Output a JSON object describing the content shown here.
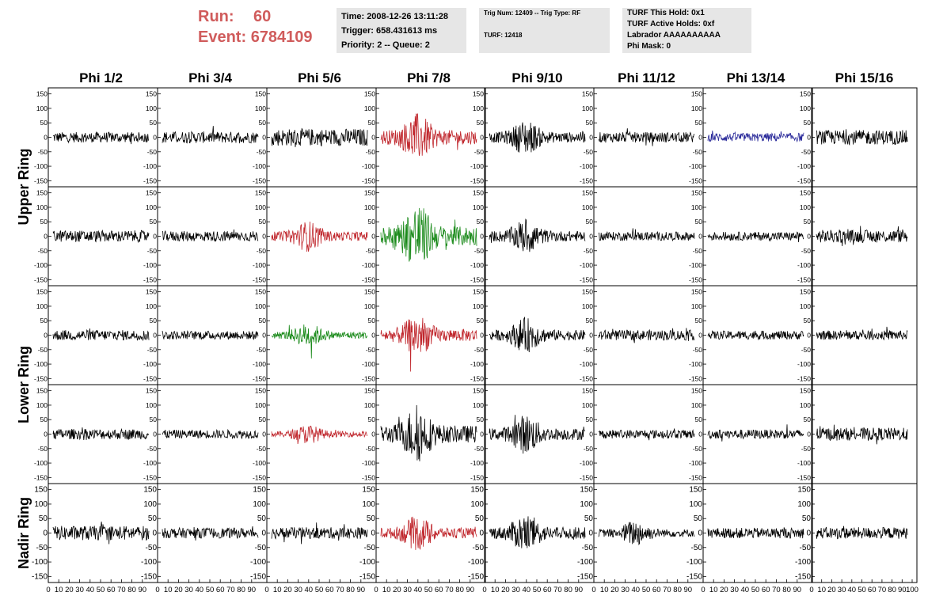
{
  "header": {
    "run_label": "Run:",
    "run_value": "60",
    "event_label": "Event:",
    "event_value": "6784109",
    "time_line": "Time: 2008-12-26 13:11:28",
    "trigger_line": "Trigger: 658.431613 ms",
    "priority_line": "Priority: 2 -- Queue: 2",
    "trig_num_line": "Trig Num: 12409 -- Trig Type: RF",
    "turf_line": "TURF: 12418",
    "turf_hold_line": "TURF This Hold: 0x1",
    "turf_active_line": "TURF Active Holds: 0xf",
    "labrador_line": "Labrador AAAAAAAAAA",
    "phi_mask_line": "Phi Mask: 0"
  },
  "colors": {
    "header_red": "#d05c5c",
    "trace_black": "#000000",
    "trace_red": "#c0272d",
    "trace_green": "#1a8a1a",
    "trace_blue": "#2a2a9a",
    "info_bg": "#e6e6e6"
  },
  "chart_data": {
    "type": "line",
    "layout": "grid of waveform panels, 5 rows x 8 columns",
    "columns": [
      "Phi 1/2",
      "Phi 3/4",
      "Phi 5/6",
      "Phi 7/8",
      "Phi 9/10",
      "Phi 11/12",
      "Phi 13/14",
      "Phi 15/16"
    ],
    "row_groups": [
      {
        "label": "Upper Ring",
        "rows": [
          0,
          1
        ]
      },
      {
        "label": "Lower Ring",
        "rows": [
          2,
          3
        ]
      },
      {
        "label": "Nadir Ring",
        "rows": [
          4
        ]
      }
    ],
    "ylim": [
      -160,
      160
    ],
    "yticks": [
      150,
      100,
      50,
      0,
      -50,
      -100,
      -150
    ],
    "xlim": [
      0,
      100
    ],
    "xticks": [
      0,
      10,
      20,
      30,
      40,
      50,
      60,
      70,
      80,
      90,
      100
    ],
    "grid": false,
    "trace_amplitude": [
      [
        18,
        20,
        30,
        55,
        40,
        18,
        15,
        25
      ],
      [
        20,
        18,
        35,
        75,
        40,
        15,
        15,
        22
      ],
      [
        18,
        15,
        28,
        48,
        40,
        18,
        15,
        16
      ],
      [
        18,
        15,
        22,
        65,
        45,
        15,
        16,
        22
      ],
      [
        25,
        18,
        20,
        40,
        45,
        30,
        18,
        20
      ]
    ],
    "trace_color": [
      [
        "black",
        "black",
        "black",
        "red",
        "black",
        "black",
        "blue",
        "black"
      ],
      [
        "black",
        "black",
        "red",
        "green",
        "black",
        "black",
        "black",
        "black"
      ],
      [
        "black",
        "black",
        "green",
        "red",
        "black",
        "black",
        "black",
        "black"
      ],
      [
        "black",
        "black",
        "red",
        "black",
        "black",
        "black",
        "black",
        "black"
      ],
      [
        "black",
        "black",
        "black",
        "red",
        "black",
        "black",
        "black",
        "black"
      ]
    ],
    "trace_shape": [
      [
        "flat",
        "flat",
        "flat",
        "burst",
        "burst",
        "flat",
        "flat",
        "flat"
      ],
      [
        "flat",
        "flat",
        "burst",
        "burst",
        "burst",
        "flat",
        "flat",
        "flat"
      ],
      [
        "flat",
        "flat",
        "burst",
        "burst",
        "burst",
        "flat",
        "flat",
        "flat"
      ],
      [
        "flat",
        "flat",
        "burst",
        "burst",
        "burst",
        "flat",
        "flat",
        "flat"
      ],
      [
        "flat",
        "flat",
        "flat",
        "burst",
        "burst",
        "burst",
        "flat",
        "flat"
      ]
    ]
  }
}
